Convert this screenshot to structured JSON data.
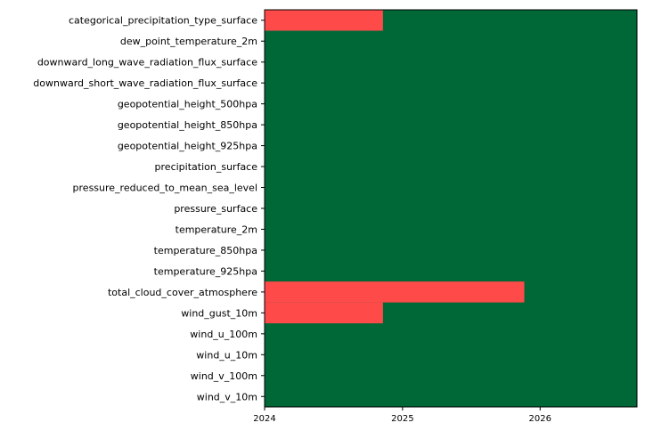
{
  "chart_data": {
    "type": "heatmap",
    "title": "",
    "xlabel": "",
    "ylabel": "",
    "x_range": [
      "2024-01-01",
      "2026-09-15"
    ],
    "x_ticks": [
      {
        "date": "2024-01-01",
        "label": "2024"
      },
      {
        "date": "2025-01-01",
        "label": "2025"
      },
      {
        "date": "2026-01-01",
        "label": "2026"
      }
    ],
    "colors": {
      "available": "#006837",
      "missing": "#ff4a4a"
    },
    "rows": [
      {
        "label": "categorical_precipitation_type_surface",
        "missing": [
          [
            "2024-01-01",
            "2024-11-10"
          ]
        ]
      },
      {
        "label": "dew_point_temperature_2m",
        "missing": []
      },
      {
        "label": "downward_long_wave_radiation_flux_surface",
        "missing": []
      },
      {
        "label": "downward_short_wave_radiation_flux_surface",
        "missing": []
      },
      {
        "label": "geopotential_height_500hpa",
        "missing": []
      },
      {
        "label": "geopotential_height_850hpa",
        "missing": []
      },
      {
        "label": "geopotential_height_925hpa",
        "missing": []
      },
      {
        "label": "precipitation_surface",
        "missing": []
      },
      {
        "label": "pressure_reduced_to_mean_sea_level",
        "missing": []
      },
      {
        "label": "pressure_surface",
        "missing": []
      },
      {
        "label": "temperature_2m",
        "missing": []
      },
      {
        "label": "temperature_850hpa",
        "missing": []
      },
      {
        "label": "temperature_925hpa",
        "missing": []
      },
      {
        "label": "total_cloud_cover_atmosphere",
        "missing": [
          [
            "2024-01-01",
            "2025-11-20"
          ]
        ]
      },
      {
        "label": "wind_gust_10m",
        "missing": [
          [
            "2024-01-01",
            "2024-11-10"
          ]
        ]
      },
      {
        "label": "wind_u_100m",
        "missing": []
      },
      {
        "label": "wind_u_10m",
        "missing": []
      },
      {
        "label": "wind_v_100m",
        "missing": []
      },
      {
        "label": "wind_v_10m",
        "missing": []
      }
    ]
  }
}
